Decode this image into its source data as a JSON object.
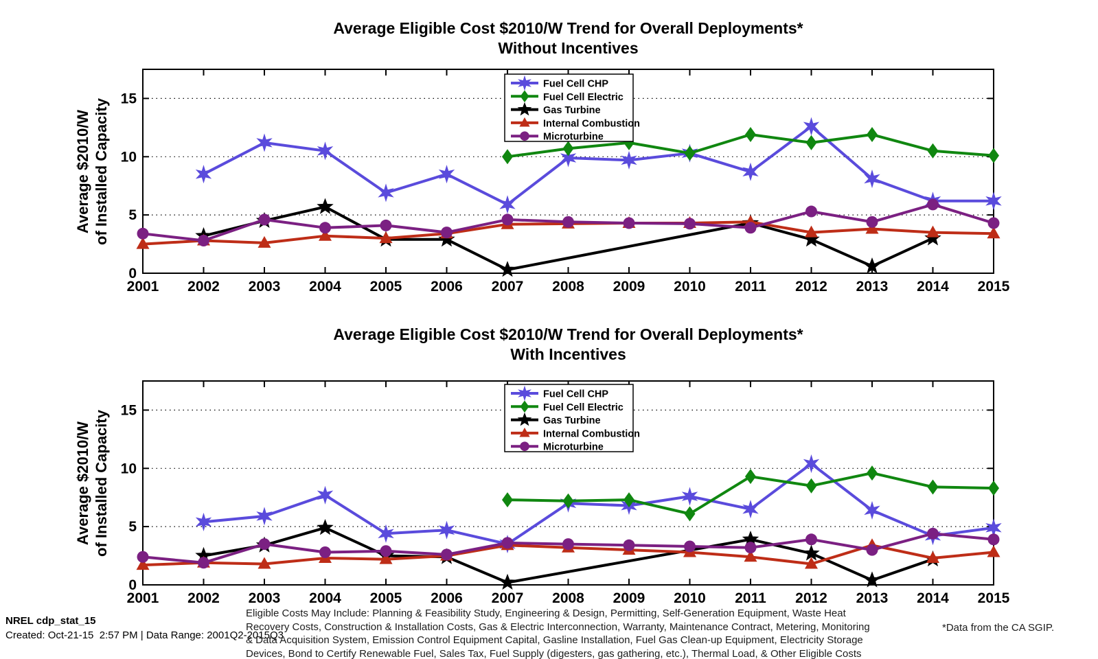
{
  "figure": {
    "footer_id": "NREL cdp_stat_15",
    "footer_created": "Created: Oct-21-15  2:57 PM | Data Range: 2001Q2-2015Q3",
    "source_note": "*Data from the CA SGIP.",
    "footnote_lines": [
      "Eligible Costs May Include: Planning & Feasibility Study, Engineering & Design, Permitting, Self-Generation Equipment, Waste Heat",
      "Recovery Costs, Construction & Installation Costs, Gas & Electric Interconnection, Warranty, Maintenance Contract, Metering, Monitoring",
      "& Data Acquisition System, Emission Control Equipment Capital, Gasline Installation, Fuel Gas Clean-up Equipment, Electricity Storage",
      "Devices, Bond to Certify Renewable Fuel, Sales Tax, Fuel Supply (digesters, gas gathering, etc.), Thermal Load, & Other Eligible Costs"
    ]
  },
  "chart_data": [
    {
      "type": "line",
      "title": "Average Eligible Cost $2010/W Trend for Overall Deployments*",
      "subtitle": "Without Incentives",
      "ylabel_lines": [
        "Average $2010/W",
        "of Installed Capacity"
      ],
      "xlabel": "",
      "x_ticks": [
        2001,
        2002,
        2003,
        2004,
        2005,
        2006,
        2007,
        2008,
        2009,
        2010,
        2011,
        2012,
        2013,
        2014,
        2015
      ],
      "y_ticks": [
        0,
        5,
        10,
        15
      ],
      "xlim": [
        2001,
        2015
      ],
      "ylim": [
        0,
        17.5
      ],
      "grid": "horizontal-dotted",
      "legend_position": "top-center",
      "series": [
        {
          "name": "Fuel Cell CHP",
          "color": "#5A4BDC",
          "marker": "star6",
          "points": [
            [
              2002,
              8.5
            ],
            [
              2003,
              11.2
            ],
            [
              2004,
              10.5
            ],
            [
              2005,
              6.9
            ],
            [
              2006,
              8.5
            ],
            [
              2007,
              5.9
            ],
            [
              2008,
              9.9
            ],
            [
              2009,
              9.7
            ],
            [
              2010,
              10.3
            ],
            [
              2011,
              8.7
            ],
            [
              2012,
              12.6
            ],
            [
              2013,
              8.1
            ],
            [
              2014,
              6.2
            ],
            [
              2015,
              6.2
            ]
          ]
        },
        {
          "name": "Fuel Cell Electric",
          "color": "#108710",
          "marker": "diamond",
          "points": [
            [
              2007,
              10.0
            ],
            [
              2008,
              10.7
            ],
            [
              2009,
              11.2
            ],
            [
              2010,
              10.3
            ],
            [
              2011,
              11.9
            ],
            [
              2012,
              11.2
            ],
            [
              2013,
              11.9
            ],
            [
              2014,
              10.5
            ],
            [
              2015,
              10.1
            ]
          ]
        },
        {
          "name": "Gas Turbine",
          "color": "#000000",
          "marker": "star5",
          "points": [
            [
              2002,
              3.2
            ],
            [
              2003,
              4.5
            ],
            [
              2004,
              5.7
            ],
            [
              2005,
              2.9
            ],
            [
              2006,
              2.9
            ],
            [
              2007,
              0.3
            ],
            [
              2011,
              4.3
            ],
            [
              2012,
              2.9
            ],
            [
              2013,
              0.6
            ],
            [
              2014,
              3.0
            ]
          ]
        },
        {
          "name": "Internal Combustion",
          "color": "#BE2D17",
          "marker": "triangle",
          "points": [
            [
              2001,
              2.5
            ],
            [
              2002,
              2.8
            ],
            [
              2003,
              2.6
            ],
            [
              2004,
              3.2
            ],
            [
              2005,
              3.0
            ],
            [
              2006,
              3.4
            ],
            [
              2007,
              4.2
            ],
            [
              2008,
              4.25
            ],
            [
              2009,
              4.3
            ],
            [
              2010,
              4.3
            ],
            [
              2011,
              4.4
            ],
            [
              2012,
              3.5
            ],
            [
              2013,
              3.8
            ],
            [
              2014,
              3.5
            ],
            [
              2015,
              3.4
            ]
          ]
        },
        {
          "name": "Microturbine",
          "color": "#7B2082",
          "marker": "circle",
          "points": [
            [
              2001,
              3.4
            ],
            [
              2002,
              2.8
            ],
            [
              2003,
              4.6
            ],
            [
              2004,
              3.9
            ],
            [
              2005,
              4.1
            ],
            [
              2006,
              3.5
            ],
            [
              2007,
              4.6
            ],
            [
              2008,
              4.4
            ],
            [
              2009,
              4.3
            ],
            [
              2010,
              4.25
            ],
            [
              2011,
              3.9
            ],
            [
              2012,
              5.3
            ],
            [
              2013,
              4.4
            ],
            [
              2014,
              5.9
            ],
            [
              2015,
              4.3
            ]
          ]
        }
      ]
    },
    {
      "type": "line",
      "title": "Average Eligible Cost $2010/W Trend for Overall Deployments*",
      "subtitle": "With Incentives",
      "ylabel_lines": [
        "Average $2010/W",
        "of Installed Capacity"
      ],
      "xlabel": "",
      "x_ticks": [
        2001,
        2002,
        2003,
        2004,
        2005,
        2006,
        2007,
        2008,
        2009,
        2010,
        2011,
        2012,
        2013,
        2014,
        2015
      ],
      "y_ticks": [
        0,
        5,
        10,
        15
      ],
      "xlim": [
        2001,
        2015
      ],
      "ylim": [
        0,
        17.5
      ],
      "grid": "horizontal-dotted",
      "legend_position": "top-center",
      "series": [
        {
          "name": "Fuel Cell CHP",
          "color": "#5A4BDC",
          "marker": "star6",
          "points": [
            [
              2002,
              5.4
            ],
            [
              2003,
              5.9
            ],
            [
              2004,
              7.7
            ],
            [
              2005,
              4.4
            ],
            [
              2006,
              4.7
            ],
            [
              2007,
              3.5
            ],
            [
              2008,
              7.0
            ],
            [
              2009,
              6.8
            ],
            [
              2010,
              7.6
            ],
            [
              2011,
              6.5
            ],
            [
              2012,
              10.4
            ],
            [
              2013,
              6.4
            ],
            [
              2014,
              4.2
            ],
            [
              2015,
              4.9
            ]
          ]
        },
        {
          "name": "Fuel Cell Electric",
          "color": "#108710",
          "marker": "diamond",
          "points": [
            [
              2007,
              7.3
            ],
            [
              2008,
              7.2
            ],
            [
              2009,
              7.3
            ],
            [
              2010,
              6.1
            ],
            [
              2011,
              9.3
            ],
            [
              2012,
              8.5
            ],
            [
              2013,
              9.6
            ],
            [
              2014,
              8.4
            ],
            [
              2015,
              8.3
            ]
          ]
        },
        {
          "name": "Gas Turbine",
          "color": "#000000",
          "marker": "star5",
          "points": [
            [
              2002,
              2.5
            ],
            [
              2003,
              3.4
            ],
            [
              2004,
              4.9
            ],
            [
              2005,
              2.5
            ],
            [
              2006,
              2.4
            ],
            [
              2007,
              0.2
            ],
            [
              2011,
              3.9
            ],
            [
              2012,
              2.7
            ],
            [
              2013,
              0.4
            ],
            [
              2014,
              2.2
            ]
          ]
        },
        {
          "name": "Internal Combustion",
          "color": "#BE2D17",
          "marker": "triangle",
          "points": [
            [
              2001,
              1.7
            ],
            [
              2002,
              1.9
            ],
            [
              2003,
              1.8
            ],
            [
              2004,
              2.3
            ],
            [
              2005,
              2.2
            ],
            [
              2006,
              2.5
            ],
            [
              2007,
              3.4
            ],
            [
              2008,
              3.2
            ],
            [
              2009,
              3.0
            ],
            [
              2010,
              2.8
            ],
            [
              2011,
              2.4
            ],
            [
              2012,
              1.8
            ],
            [
              2013,
              3.4
            ],
            [
              2014,
              2.3
            ],
            [
              2015,
              2.8
            ]
          ]
        },
        {
          "name": "Microturbine",
          "color": "#7B2082",
          "marker": "circle",
          "points": [
            [
              2001,
              2.4
            ],
            [
              2002,
              1.9
            ],
            [
              2003,
              3.5
            ],
            [
              2004,
              2.8
            ],
            [
              2005,
              2.9
            ],
            [
              2006,
              2.6
            ],
            [
              2007,
              3.6
            ],
            [
              2008,
              3.5
            ],
            [
              2009,
              3.4
            ],
            [
              2010,
              3.3
            ],
            [
              2011,
              3.2
            ],
            [
              2012,
              3.9
            ],
            [
              2013,
              3.0
            ],
            [
              2014,
              4.4
            ],
            [
              2015,
              3.9
            ]
          ]
        }
      ]
    }
  ]
}
